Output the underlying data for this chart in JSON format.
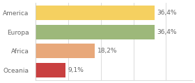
{
  "categories": [
    "America",
    "Europa",
    "Africa",
    "Oceania"
  ],
  "values": [
    36.4,
    36.4,
    18.2,
    9.1
  ],
  "labels": [
    "36,4%",
    "36,4%",
    "18,2%",
    "9,1%"
  ],
  "bar_colors": [
    "#f5d060",
    "#9db87a",
    "#e8a87a",
    "#c94040"
  ],
  "background_color": "#ffffff",
  "xlim": [
    0,
    48
  ],
  "bar_height": 0.75,
  "label_fontsize": 6.5,
  "tick_fontsize": 6.5,
  "spine_color": "#cccccc",
  "text_color": "#666666"
}
